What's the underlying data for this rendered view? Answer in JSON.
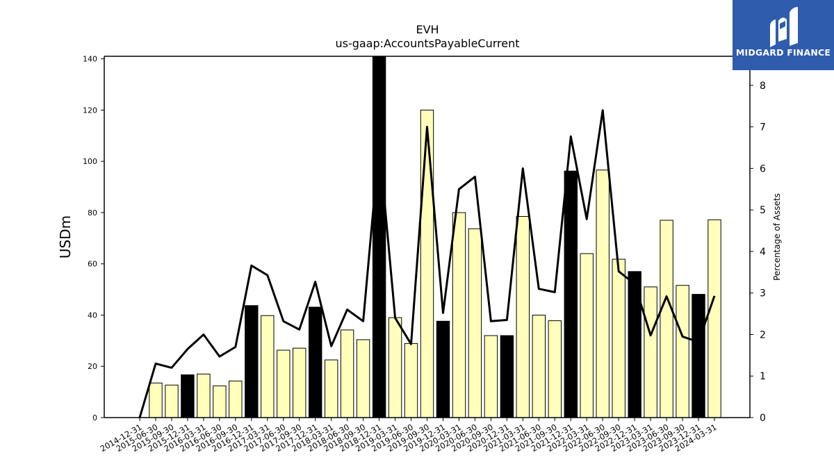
{
  "chart_data": {
    "type": "bar",
    "title": "EVH",
    "subtitle": "us-gaap:AccountsPayableCurrent",
    "ylabel": "USDm",
    "y2label": "Percentage of Assets",
    "ylim": [
      0,
      141
    ],
    "y2lim": [
      0,
      8.7
    ],
    "yticks": [
      0,
      20,
      40,
      60,
      80,
      100,
      120,
      140
    ],
    "y2ticks": [
      0,
      1,
      2,
      3,
      4,
      5,
      6,
      7,
      8
    ],
    "categories": [
      "2014-12-31",
      "2015-06-30",
      "2015-09-30",
      "2015-12-31",
      "2016-03-31",
      "2016-06-30",
      "2016-09-30",
      "2016-12-31",
      "2017-03-31",
      "2017-06-30",
      "2017-09-30",
      "2017-12-31",
      "2018-03-31",
      "2018-06-30",
      "2018-09-30",
      "2018-12-31",
      "2019-03-31",
      "2019-06-30",
      "2019-09-30",
      "2019-12-31",
      "2020-03-31",
      "2020-06-30",
      "2020-09-30",
      "2020-12-31",
      "2021-03-31",
      "2021-06-30",
      "2021-09-30",
      "2021-12-31",
      "2022-03-31",
      "2022-06-30",
      "2022-09-30",
      "2022-12-31",
      "2023-03-31",
      "2023-06-30",
      "2023-09-30",
      "2023-12-31",
      "2024-03-31"
    ],
    "series": [
      {
        "kind": "bar",
        "values": [
          null,
          13.5,
          12.7,
          16.7,
          17.0,
          12.4,
          14.3,
          43.7,
          39.8,
          26.3,
          27.1,
          43.1,
          22.5,
          34.2,
          30.4,
          141.0,
          39.0,
          28.9,
          120.0,
          37.6,
          80.0,
          73.7,
          32.0,
          32.0,
          78.5,
          40.0,
          37.8,
          96.2,
          64.0,
          96.6,
          61.8,
          57.0,
          51.0,
          77.0,
          51.6,
          48.1,
          77.2
        ],
        "highlight": [
          false,
          false,
          false,
          true,
          false,
          false,
          false,
          true,
          false,
          false,
          false,
          true,
          false,
          false,
          false,
          true,
          false,
          false,
          false,
          true,
          false,
          false,
          false,
          true,
          false,
          false,
          false,
          true,
          false,
          false,
          false,
          true,
          false,
          false,
          false,
          true,
          false
        ]
      },
      {
        "kind": "line",
        "axis": "right",
        "values": [
          0,
          1.3,
          1.2,
          1.65,
          2.0,
          1.47,
          1.7,
          3.66,
          3.43,
          2.32,
          2.12,
          3.27,
          1.72,
          2.6,
          2.32,
          6.6,
          2.4,
          1.77,
          7.0,
          2.52,
          5.5,
          5.8,
          2.32,
          2.35,
          6.0,
          3.1,
          3.02,
          6.77,
          4.78,
          7.4,
          3.52,
          3.22,
          1.98,
          2.92,
          1.95,
          1.82,
          2.93
        ]
      }
    ],
    "colors": {
      "bar_fill": "#ffffbb",
      "bar_highlight": "#000000",
      "line": "#000000"
    }
  },
  "logo": {
    "text": "MIDGARD FINANCE",
    "background": "#2f5cad",
    "name": "midgard-finance-logo"
  }
}
